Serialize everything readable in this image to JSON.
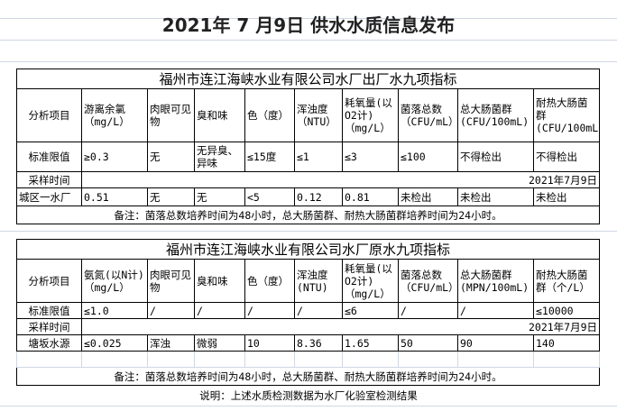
{
  "page_title": "2021年 7 月9日 供水水质信息发布",
  "table1": {
    "title": "福州市连江海峡水业有限公司水厂出厂水九项指标",
    "headers": [
      "分析项目",
      "游离余氯（mg/L）",
      "肉眼可见物",
      "臭和味",
      "色（度）",
      "浑浊度（NTU）",
      "耗氧量(以O2计)（mg/L）",
      "菌落总数（CFU/mL）",
      "总大肠菌群(CFU/100mL)",
      "耐热大肠菌群(CFU/100mL)"
    ],
    "standard": [
      "标准限值",
      "≥0.3",
      "无",
      "无异臭、异味",
      "≤15度",
      "≤1",
      "≤3",
      "≤100",
      "不得检出",
      "不得检出"
    ],
    "sampling_label": "采样时间",
    "sampling_date": "2021年7月9日",
    "rows": [
      [
        "城区一水厂",
        "0.51",
        "无",
        "无",
        "<5",
        "0.12",
        "0.81",
        "未检出",
        "未检出",
        "未检出"
      ]
    ],
    "note": "备注：菌落总数培养时间为48小时，总大肠菌群、耐热大肠菌群培养时间为24小时。"
  },
  "table2": {
    "title": "福州市连江海峡水业有限公司水厂原水九项指标",
    "headers": [
      "分析项目",
      "氨氮(以N计)（mg/L）",
      "肉眼可见物",
      "臭和味",
      "色（度）",
      "浑浊度(NTU)",
      "耗氧量(以O2计)（mg/L）",
      "菌落总数（CFU/mL）",
      "总大肠菌群(MPN/100mL)",
      "耐热大肠菌群（个/L）"
    ],
    "standard": [
      "标准限值",
      "≤1.0",
      "/",
      "/",
      "/",
      "/",
      "≤6",
      "/",
      "/",
      "≤10000"
    ],
    "sampling_label": "采样时间",
    "sampling_date": "2021年7月9日",
    "rows": [
      [
        "塘坂水源",
        "≤0.025",
        "浑浊",
        "微弱",
        "10",
        "8.36",
        "1.65",
        "50",
        "90",
        "140"
      ]
    ],
    "note": "备注：菌落总数培养时间为48小时，总大肠菌群、耐热大肠菌群培养时间为24小时。"
  },
  "explanation": "说明：上述水质检测数据为水厂化验室检测结果"
}
